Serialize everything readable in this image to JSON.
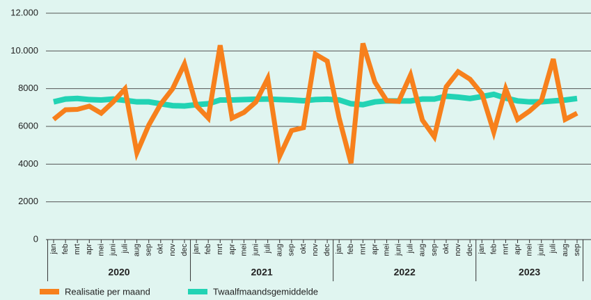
{
  "chart_data": {
    "type": "line",
    "categories": [
      "jan",
      "feb",
      "mrt",
      "apr",
      "mei",
      "juni",
      "juli",
      "aug",
      "sep",
      "okt",
      "nov",
      "dec",
      "jan",
      "feb",
      "mrt",
      "apr",
      "mei",
      "juni",
      "juli",
      "aug",
      "sep",
      "okt",
      "nov",
      "dec",
      "jan",
      "feb",
      "mrt",
      "apr",
      "mei",
      "juni",
      "juli",
      "aug",
      "sep",
      "okt",
      "nov",
      "dec",
      "jan",
      "feb",
      "mrt",
      "apr",
      "mei",
      "juni",
      "juli",
      "aug",
      "sep"
    ],
    "groups": [
      "2020",
      "2021",
      "2022",
      "2023"
    ],
    "series": [
      {
        "name": "Realisatie per maand",
        "color": "#f7801c",
        "values": [
          6370,
          6880,
          6900,
          7070,
          6700,
          7290,
          7990,
          4600,
          6070,
          7180,
          7990,
          9310,
          7100,
          6440,
          10300,
          6440,
          6740,
          7290,
          8540,
          4420,
          5780,
          5930,
          9830,
          9460,
          6440,
          4050,
          10400,
          8350,
          7360,
          7320,
          8720,
          6330,
          5450,
          8100,
          8900,
          8500,
          7730,
          5700,
          7990,
          6370,
          6810,
          7360,
          9570,
          6370,
          6700
        ]
      },
      {
        "name": "Twaalfmaandsgemiddelde",
        "color": "#22d3b4",
        "values": [
          7300,
          7450,
          7480,
          7420,
          7400,
          7450,
          7380,
          7300,
          7300,
          7200,
          7100,
          7080,
          7150,
          7200,
          7400,
          7400,
          7420,
          7440,
          7450,
          7420,
          7400,
          7360,
          7420,
          7440,
          7400,
          7200,
          7150,
          7300,
          7350,
          7350,
          7350,
          7450,
          7450,
          7600,
          7550,
          7480,
          7580,
          7700,
          7500,
          7350,
          7300,
          7300,
          7350,
          7400,
          7480
        ]
      }
    ],
    "ylim": [
      0,
      12000
    ],
    "yticks": [
      0,
      2000,
      4000,
      6000,
      8000,
      {
        "value": 10000,
        "label": "10.000"
      },
      {
        "value": 12000,
        "label": "12.000"
      }
    ],
    "grid": true
  }
}
